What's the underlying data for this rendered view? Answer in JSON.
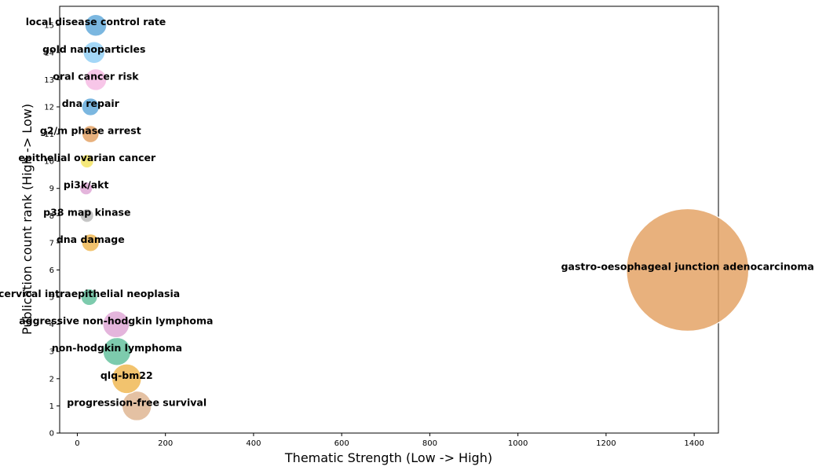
{
  "chart_data": {
    "type": "scatter",
    "title": "",
    "xlabel": "Thematic Strength (Low -> High)",
    "ylabel": "Publication count rank (High -> Low)",
    "xlim": [
      -40,
      1455
    ],
    "ylim": [
      0,
      15.7
    ],
    "xticks": [
      0,
      200,
      400,
      600,
      800,
      1000,
      1200,
      1400
    ],
    "yticks": [
      0,
      1,
      2,
      3,
      4,
      5,
      6,
      7,
      8,
      9,
      10,
      11,
      12,
      13,
      14,
      15
    ],
    "grid": false,
    "points": [
      {
        "label": "progression-free survival",
        "x": 135,
        "y": 1,
        "size": 240,
        "color": "#ddb28c"
      },
      {
        "label": "qlq-bm22",
        "x": 112,
        "y": 2,
        "size": 240,
        "color": "#efb44a"
      },
      {
        "label": "non-hodgkin lymphoma",
        "x": 90,
        "y": 3,
        "size": 215,
        "color": "#5dbe98"
      },
      {
        "label": "aggressive non-hodgkin lymphoma",
        "x": 88,
        "y": 4,
        "size": 195,
        "color": "#dda2d3"
      },
      {
        "label": "cervical intraepithelial neoplasia",
        "x": 27,
        "y": 5,
        "size": 75,
        "color": "#5dbe98"
      },
      {
        "label": "gastro-oesophageal junction adenocarcinoma",
        "x": 1385,
        "y": 6,
        "size": 4100,
        "color": "#e29d5c"
      },
      {
        "label": "dna damage",
        "x": 30,
        "y": 7,
        "size": 85,
        "color": "#efb44a"
      },
      {
        "label": "p38 map kinase",
        "x": 22,
        "y": 8,
        "size": 50,
        "color": "#b8b8b8"
      },
      {
        "label": "pi3k/akt",
        "x": 20,
        "y": 9,
        "size": 45,
        "color": "#dda2d3"
      },
      {
        "label": "epithelial ovarian cancer",
        "x": 22,
        "y": 10,
        "size": 50,
        "color": "#f2e25a"
      },
      {
        "label": "g2/m phase arrest",
        "x": 30,
        "y": 11,
        "size": 80,
        "color": "#e29d5c"
      },
      {
        "label": "dna repair",
        "x": 30,
        "y": 12,
        "size": 85,
        "color": "#5aa5d8"
      },
      {
        "label": "oral cancer risk",
        "x": 42,
        "y": 13,
        "size": 130,
        "color": "#f5b8e2"
      },
      {
        "label": "gold nanoparticles",
        "x": 38,
        "y": 14,
        "size": 130,
        "color": "#8ccdf5"
      },
      {
        "label": "local disease control rate",
        "x": 42,
        "y": 15,
        "size": 130,
        "color": "#5aa5d8"
      }
    ]
  }
}
